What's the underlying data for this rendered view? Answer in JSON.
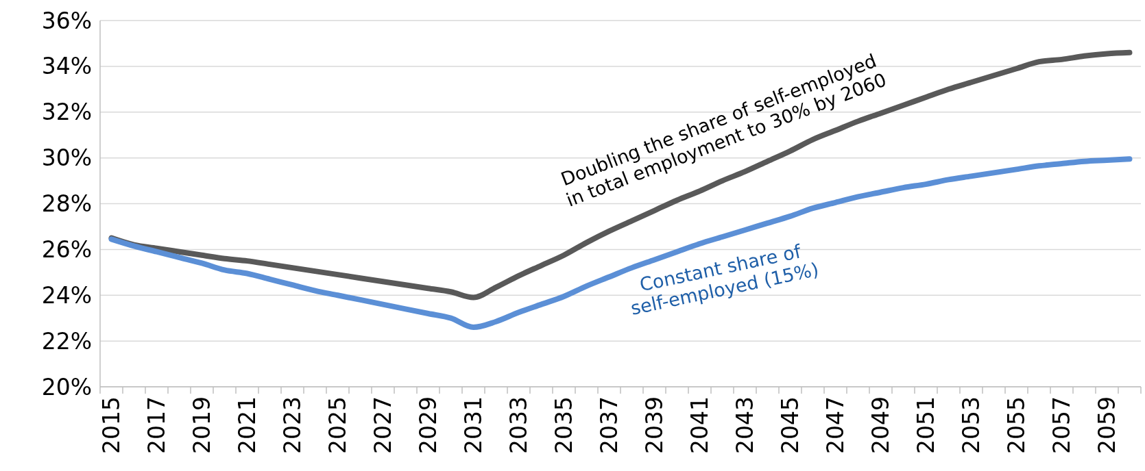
{
  "chart_data": {
    "type": "line",
    "categories": [
      "2015",
      null,
      "2017",
      null,
      "2019",
      null,
      "2021",
      null,
      "2023",
      null,
      "2025",
      null,
      "2027",
      null,
      "2029",
      null,
      "2031",
      null,
      "2033",
      null,
      "2035",
      null,
      "2037",
      null,
      "2039",
      null,
      "2041",
      null,
      "2043",
      null,
      "2045",
      null,
      "2047",
      null,
      "2049",
      null,
      "2051",
      null,
      "2053",
      null,
      "2055",
      null,
      "2057",
      null,
      "2059",
      null
    ],
    "series": [
      {
        "name": "Doubling the share of self-employed in total employment to 30% by 2060",
        "color": "#595959",
        "values": [
          26.5,
          26.2,
          26.05,
          25.9,
          25.75,
          25.6,
          25.5,
          25.35,
          25.2,
          25.05,
          24.9,
          24.75,
          24.6,
          24.45,
          24.3,
          24.15,
          23.9,
          24.35,
          24.85,
          25.3,
          25.75,
          26.3,
          26.8,
          27.25,
          27.7,
          28.15,
          28.55,
          29.0,
          29.4,
          29.85,
          30.3,
          30.8,
          31.2,
          31.6,
          31.95,
          32.3,
          32.65,
          33.0,
          33.3,
          33.6,
          33.9,
          34.2,
          34.3,
          34.45,
          34.55,
          34.6
        ]
      },
      {
        "name": "Constant share of self-employed (15%)",
        "color": "#5b8fd6",
        "values": [
          26.45,
          26.15,
          25.9,
          25.65,
          25.4,
          25.1,
          24.95,
          24.7,
          24.45,
          24.2,
          24.0,
          23.8,
          23.6,
          23.4,
          23.2,
          23.0,
          22.6,
          22.85,
          23.25,
          23.6,
          23.95,
          24.4,
          24.8,
          25.2,
          25.55,
          25.9,
          26.25,
          26.55,
          26.85,
          27.15,
          27.45,
          27.8,
          28.05,
          28.3,
          28.5,
          28.7,
          28.85,
          29.05,
          29.2,
          29.35,
          29.5,
          29.65,
          29.75,
          29.85,
          29.9,
          29.95
        ]
      }
    ],
    "ylim": [
      20,
      36
    ],
    "yticks": [
      {
        "value": 20,
        "label": "20%"
      },
      {
        "value": 22,
        "label": "22%"
      },
      {
        "value": 24,
        "label": "24%"
      },
      {
        "value": 26,
        "label": "26%"
      },
      {
        "value": 28,
        "label": "28%"
      },
      {
        "value": 30,
        "label": "30%"
      },
      {
        "value": 32,
        "label": "32%"
      },
      {
        "value": 34,
        "label": "34%"
      },
      {
        "value": 36,
        "label": "36%"
      }
    ],
    "grid": "y",
    "marker": "none",
    "line_style": "solid"
  }
}
